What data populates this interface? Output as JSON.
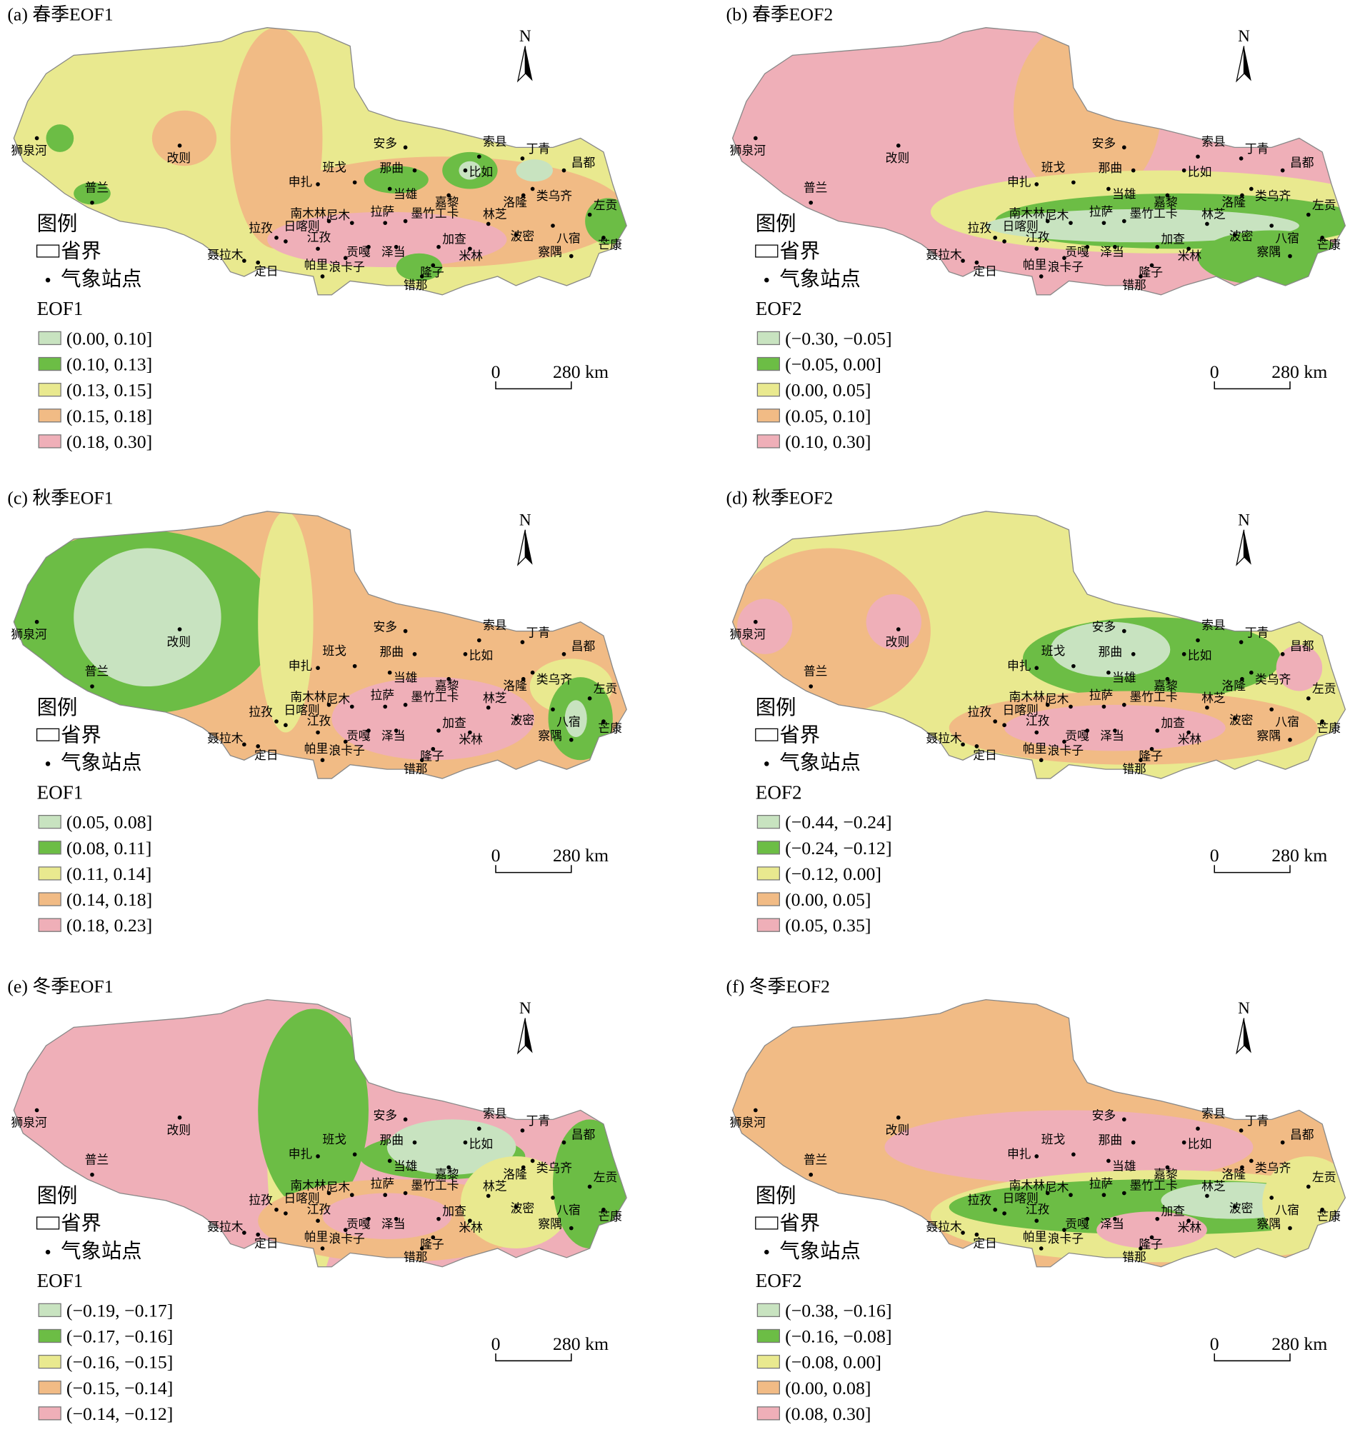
{
  "class_colors": [
    "#c8e3c0",
    "#6cbd45",
    "#e9e98f",
    "#f1bb85",
    "#efafb8"
  ],
  "legend": {
    "title": "图例",
    "boundary": "省界",
    "station": "气象站点"
  },
  "north": "N",
  "scale_bar": {
    "start": "0",
    "end": "280 km"
  },
  "stations": [
    "狮泉河",
    "改则",
    "普兰",
    "安多",
    "班戈",
    "那曲",
    "索县",
    "比如",
    "丁青",
    "昌都",
    "申扎",
    "当雄",
    "嘉黎",
    "洛隆",
    "类乌齐",
    "南木林",
    "尼木",
    "拉萨",
    "墨竹工卡",
    "林芝",
    "八宿",
    "左贡",
    "拉孜",
    "日喀则",
    "江孜",
    "贡嘎",
    "泽当",
    "加查",
    "米林",
    "波密",
    "芒康",
    "聂拉木",
    "定日",
    "浪卡子",
    "隆子",
    "察隅",
    "帕里",
    "错那"
  ],
  "panels": [
    {
      "title": "(a) 春季EOF1",
      "variable": "EOF1",
      "classes": [
        "(0.00, 0.10]",
        "(0.10, 0.13]",
        "(0.13, 0.15]",
        "(0.15, 0.18]",
        "(0.18, 0.30]"
      ]
    },
    {
      "title": "(b) 春季EOF2",
      "variable": "EOF2",
      "classes": [
        "(−0.30, −0.05]",
        "(−0.05, 0.00]",
        "(0.00, 0.05]",
        "(0.05, 0.10]",
        "(0.10, 0.30]"
      ]
    },
    {
      "title": "(c) 秋季EOF1",
      "variable": "EOF1",
      "classes": [
        "(0.05, 0.08]",
        "(0.08, 0.11]",
        "(0.11, 0.14]",
        "(0.14, 0.18]",
        "(0.18, 0.23]"
      ]
    },
    {
      "title": "(d) 秋季EOF2",
      "variable": "EOF2",
      "classes": [
        "(−0.44, −0.24]",
        "(−0.24, −0.12]",
        "(−0.12, 0.00]",
        "(0.00, 0.05]",
        "(0.05, 0.35]"
      ]
    },
    {
      "title": "(e) 冬季EOF1",
      "variable": "EOF1",
      "classes": [
        "(−0.19, −0.17]",
        "(−0.17, −0.16]",
        "(−0.16, −0.15]",
        "(−0.15, −0.14]",
        "(−0.14, −0.12]"
      ]
    },
    {
      "title": "(f) 冬季EOF2",
      "variable": "EOF2",
      "classes": [
        "(−0.38, −0.16]",
        "(−0.16, −0.08]",
        "(−0.08, 0.00]",
        "(0.00, 0.08]",
        "(0.08, 0.30]"
      ]
    }
  ]
}
